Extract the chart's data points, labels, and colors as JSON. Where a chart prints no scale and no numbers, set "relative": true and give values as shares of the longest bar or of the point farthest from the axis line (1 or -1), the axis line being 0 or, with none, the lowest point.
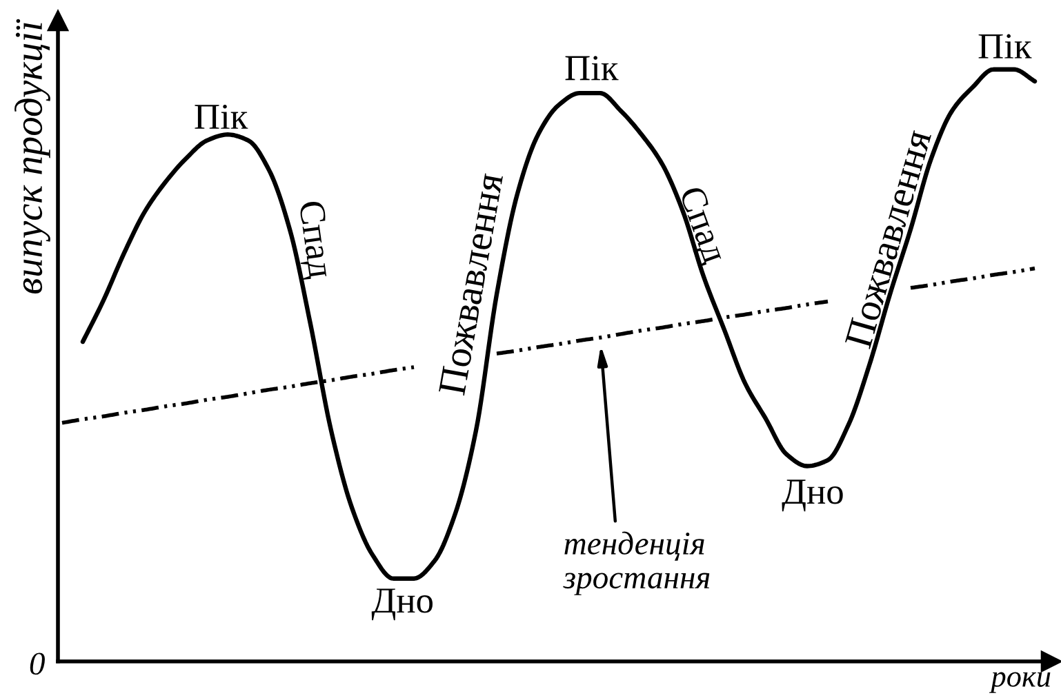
{
  "chart_data": {
    "type": "line",
    "relative": true,
    "xlabel": "роки",
    "ylabel": "випуск продукції",
    "categories": [
      null,
      null,
      null,
      null,
      null,
      null,
      null,
      null,
      null,
      null,
      null,
      null,
      null,
      null,
      null,
      null,
      null,
      null,
      null,
      null,
      null,
      null,
      null,
      null,
      null,
      null,
      null,
      null,
      null,
      null,
      null,
      null,
      null,
      null,
      null,
      null,
      null,
      null,
      null,
      null,
      null,
      null,
      null,
      null,
      null,
      null,
      null,
      null
    ],
    "series": [
      {
        "color": "#000000",
        "line_style": "solid",
        "values": [
          null,
          0.54,
          0.61,
          0.69,
          0.76,
          0.81,
          0.85,
          0.88,
          0.89,
          0.88,
          0.83,
          0.73,
          0.57,
          0.39,
          0.26,
          0.18,
          0.14,
          0.14,
          0.17,
          0.25,
          0.39,
          0.62,
          0.79,
          0.89,
          0.94,
          0.96,
          0.96,
          0.93,
          0.89,
          0.84,
          0.76,
          0.65,
          0.56,
          0.47,
          0.41,
          0.35,
          0.33,
          0.34,
          0.4,
          0.5,
          0.62,
          0.73,
          0.85,
          0.93,
          0.97,
          1.0,
          1.0,
          0.98
        ]
      },
      {
        "name": "тенденція\nзростання",
        "color": "#000000",
        "line_style": "dashed",
        "values": [
          0.403,
          0.409,
          0.414,
          0.42,
          0.425,
          0.431,
          0.436,
          0.442,
          0.447,
          0.453,
          0.459,
          0.464,
          0.47,
          0.475,
          0.481,
          0.486,
          0.492,
          0.497,
          null,
          null,
          null,
          0.52,
          0.525,
          0.531,
          0.536,
          0.542,
          0.547,
          0.553,
          0.559,
          0.564,
          0.57,
          0.575,
          0.581,
          0.586,
          0.592,
          0.597,
          0.603,
          0.608,
          null,
          null,
          null,
          0.631,
          0.636,
          0.642,
          0.647,
          0.653,
          0.658,
          0.664
        ]
      }
    ],
    "annotations": [
      "Пік",
      "Спад",
      "Пожвавлення",
      "Дно",
      "Пік",
      "Спад",
      "Дно",
      "Пожвавлення",
      "Пік",
      "0"
    ]
  }
}
